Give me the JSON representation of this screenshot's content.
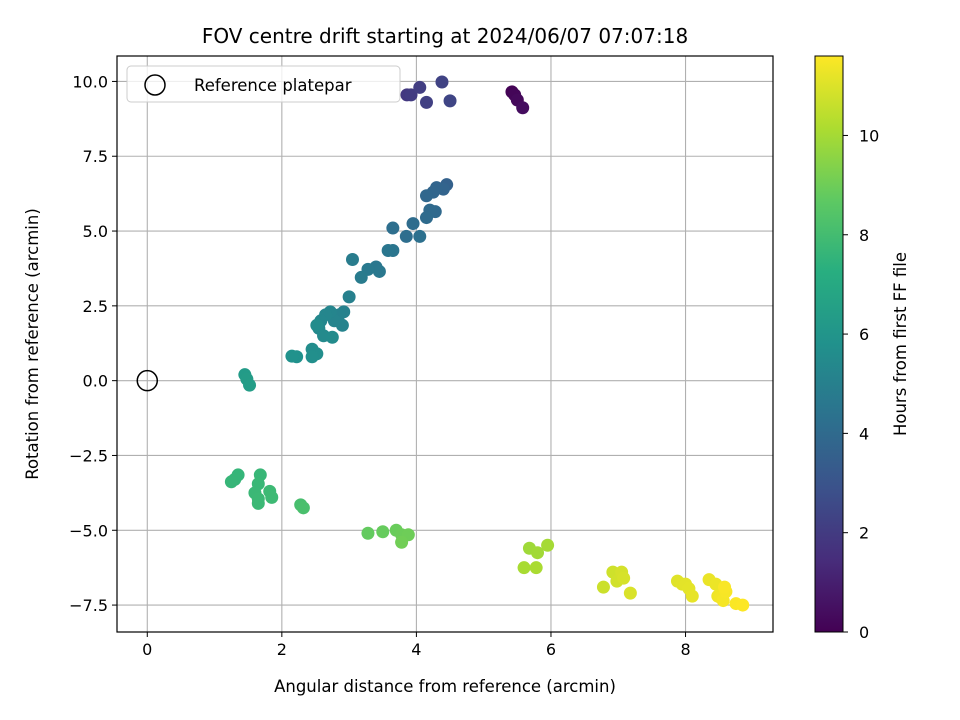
{
  "chart_data": {
    "type": "scatter",
    "title": "FOV centre drift starting at 2024/06/07 07:07:18",
    "xlabel": "Angular distance from reference (arcmin)",
    "ylabel": "Rotation from reference (arcmin)",
    "xlim": [
      -0.45,
      9.3
    ],
    "ylim": [
      -8.4,
      10.85
    ],
    "xticks": [
      0,
      2,
      4,
      6,
      8
    ],
    "yticks": [
      -7.5,
      -5.0,
      -2.5,
      0.0,
      2.5,
      5.0,
      7.5,
      10.0
    ],
    "xtick_labels": [
      "0",
      "2",
      "4",
      "6",
      "8"
    ],
    "ytick_labels": [
      "−7.5",
      "−5.0",
      "−2.5",
      "0.0",
      "2.5",
      "5.0",
      "7.5",
      "10.0"
    ],
    "grid": true,
    "legend": {
      "placement": "upper-left",
      "entries": [
        "Reference platepar"
      ]
    },
    "reference_point": {
      "x": 0,
      "y": 0
    },
    "colorbar": {
      "label": "Hours from first FF file",
      "min": 0,
      "max": 11.6,
      "colormap": "viridis",
      "ticks": [
        0,
        2,
        4,
        6,
        8,
        10
      ],
      "tick_labels": [
        "0",
        "2",
        "4",
        "6",
        "8",
        "10"
      ]
    },
    "points": [
      [
        5.42,
        9.65,
        0.05
      ],
      [
        5.46,
        9.55,
        0.15
      ],
      [
        5.5,
        9.38,
        0.25
      ],
      [
        5.58,
        9.12,
        0.4
      ],
      [
        3.86,
        9.55,
        1.9
      ],
      [
        3.92,
        9.55,
        2.0
      ],
      [
        4.05,
        9.8,
        2.1
      ],
      [
        4.15,
        9.3,
        2.2
      ],
      [
        4.38,
        9.98,
        2.3
      ],
      [
        4.5,
        9.35,
        2.4
      ],
      [
        4.45,
        6.55,
        3.6
      ],
      [
        4.4,
        6.4,
        3.7
      ],
      [
        4.3,
        6.45,
        3.75
      ],
      [
        4.25,
        6.3,
        3.8
      ],
      [
        4.15,
        6.18,
        3.85
      ],
      [
        4.28,
        5.65,
        3.95
      ],
      [
        4.2,
        5.7,
        4.0
      ],
      [
        4.15,
        5.45,
        4.05
      ],
      [
        3.95,
        5.25,
        4.1
      ],
      [
        3.85,
        4.82,
        4.15
      ],
      [
        3.65,
        5.1,
        4.2
      ],
      [
        4.05,
        4.82,
        4.25
      ],
      [
        3.65,
        4.35,
        4.5
      ],
      [
        3.58,
        4.35,
        4.55
      ],
      [
        3.4,
        3.8,
        4.6
      ],
      [
        3.45,
        3.65,
        4.65
      ],
      [
        3.28,
        3.72,
        4.7
      ],
      [
        3.18,
        3.45,
        4.75
      ],
      [
        3.05,
        4.05,
        4.8
      ],
      [
        3.0,
        2.8,
        5.0
      ],
      [
        2.92,
        2.3,
        5.05
      ],
      [
        2.85,
        2.2,
        5.1
      ],
      [
        2.9,
        1.85,
        5.15
      ],
      [
        2.78,
        2.0,
        5.2
      ],
      [
        2.72,
        2.3,
        5.25
      ],
      [
        2.65,
        2.2,
        5.3
      ],
      [
        2.58,
        2.0,
        5.35
      ],
      [
        2.55,
        1.75,
        5.4
      ],
      [
        2.62,
        1.5,
        5.45
      ],
      [
        2.75,
        1.45,
        5.5
      ],
      [
        2.52,
        1.85,
        5.55
      ],
      [
        2.45,
        1.05,
        5.6
      ],
      [
        2.52,
        0.9,
        5.65
      ],
      [
        2.45,
        0.8,
        5.7
      ],
      [
        2.22,
        0.8,
        5.8
      ],
      [
        2.15,
        0.82,
        5.85
      ],
      [
        1.45,
        0.2,
        6.3
      ],
      [
        1.48,
        0.05,
        6.35
      ],
      [
        1.52,
        -0.15,
        6.4
      ],
      [
        1.35,
        -3.15,
        7.6
      ],
      [
        1.3,
        -3.3,
        7.62
      ],
      [
        1.25,
        -3.38,
        7.65
      ],
      [
        1.68,
        -3.15,
        7.7
      ],
      [
        1.65,
        -3.45,
        7.72
      ],
      [
        1.6,
        -3.75,
        7.75
      ],
      [
        1.65,
        -3.95,
        7.78
      ],
      [
        1.65,
        -4.1,
        7.8
      ],
      [
        1.82,
        -3.7,
        7.82
      ],
      [
        1.85,
        -3.9,
        7.85
      ],
      [
        2.28,
        -4.15,
        8.1
      ],
      [
        2.32,
        -4.25,
        8.15
      ],
      [
        3.28,
        -5.1,
        8.8
      ],
      [
        3.5,
        -5.05,
        8.85
      ],
      [
        3.7,
        -5.0,
        8.9
      ],
      [
        3.78,
        -5.15,
        8.95
      ],
      [
        3.88,
        -5.15,
        9.0
      ],
      [
        3.78,
        -5.4,
        9.05
      ],
      [
        5.68,
        -5.6,
        9.9
      ],
      [
        5.8,
        -5.75,
        9.95
      ],
      [
        5.95,
        -5.5,
        10.0
      ],
      [
        5.6,
        -6.25,
        10.05
      ],
      [
        5.78,
        -6.25,
        10.1
      ],
      [
        6.78,
        -6.9,
        10.7
      ],
      [
        6.92,
        -6.4,
        10.75
      ],
      [
        6.98,
        -6.7,
        10.8
      ],
      [
        7.05,
        -6.4,
        10.85
      ],
      [
        7.08,
        -6.6,
        10.9
      ],
      [
        7.18,
        -7.1,
        10.95
      ],
      [
        7.88,
        -6.7,
        11.05
      ],
      [
        7.95,
        -6.8,
        11.1
      ],
      [
        8.0,
        -6.8,
        11.12
      ],
      [
        8.05,
        -6.95,
        11.15
      ],
      [
        8.1,
        -7.2,
        11.2
      ],
      [
        8.35,
        -6.65,
        11.25
      ],
      [
        8.45,
        -6.8,
        11.3
      ],
      [
        8.48,
        -7.2,
        11.35
      ],
      [
        8.52,
        -7.25,
        11.4
      ],
      [
        8.56,
        -7.35,
        11.45
      ],
      [
        8.6,
        -7.05,
        11.5
      ],
      [
        8.58,
        -6.9,
        11.52
      ],
      [
        8.75,
        -7.45,
        11.55
      ],
      [
        8.85,
        -7.5,
        11.58
      ]
    ]
  }
}
